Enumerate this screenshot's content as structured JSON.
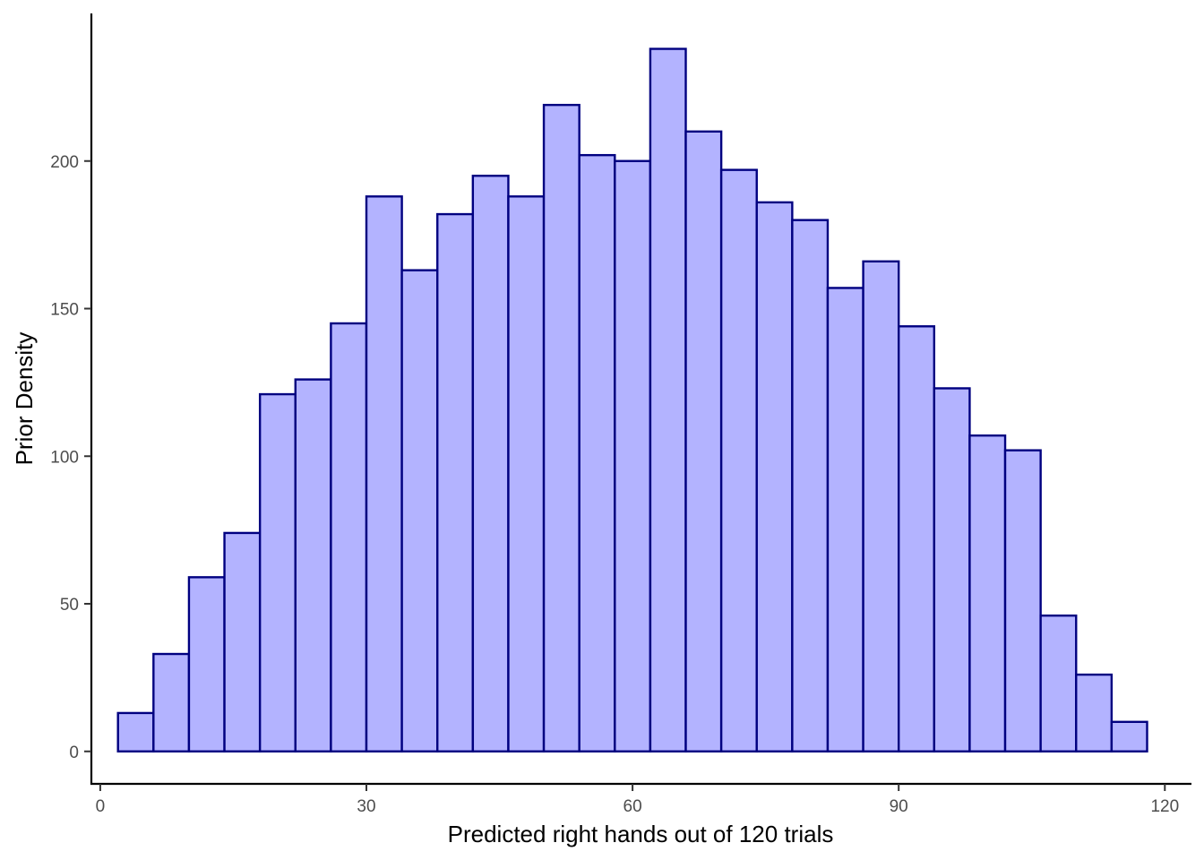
{
  "chart_data": {
    "type": "bar",
    "subtype": "histogram",
    "title": "",
    "xlabel": "Predicted right hands out of 120 trials",
    "ylabel": "Prior Density",
    "xlim": [
      -1,
      123
    ],
    "ylim": [
      -11,
      250
    ],
    "x_ticks": [
      0,
      30,
      60,
      90,
      120
    ],
    "y_ticks": [
      0,
      50,
      100,
      150,
      200
    ],
    "bin_width": 4,
    "bin_starts": [
      2,
      6,
      10,
      14,
      18,
      22,
      26,
      30,
      34,
      38,
      42,
      46,
      50,
      54,
      58,
      62,
      66,
      70,
      74,
      78,
      82,
      86,
      90,
      94,
      98,
      102,
      106,
      110,
      114
    ],
    "values": [
      13,
      33,
      59,
      74,
      121,
      126,
      145,
      188,
      163,
      182,
      195,
      188,
      219,
      202,
      200,
      238,
      210,
      197,
      186,
      180,
      157,
      166,
      144,
      123,
      107,
      102,
      46,
      26,
      10
    ],
    "fill_color": "#b3b3ff",
    "edge_color": "#000080",
    "grid": false,
    "legend": "none"
  }
}
